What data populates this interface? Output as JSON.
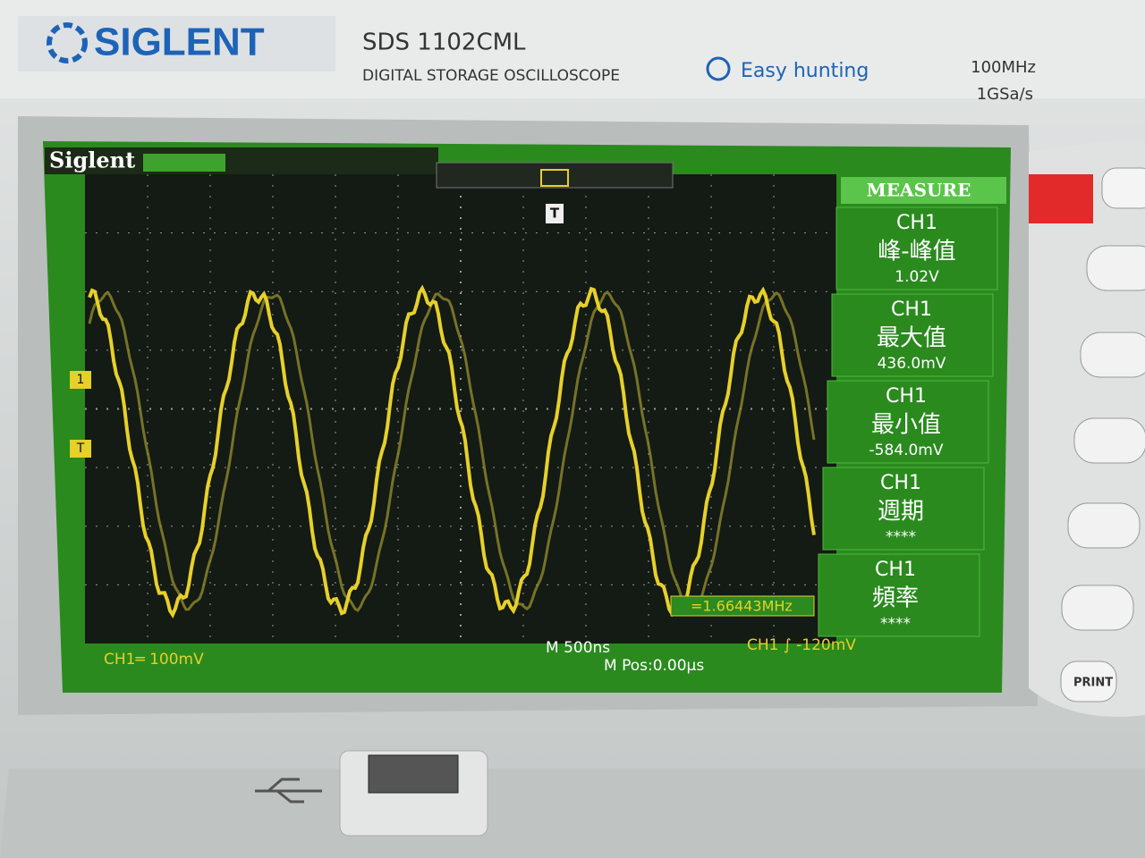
{
  "header": {
    "brand": "SIGLENT",
    "model": "SDS 1102CML",
    "subtitle": "DIGITAL STORAGE OSCILLOSCOPE",
    "feature": "Easy hunting",
    "bandwidth": "100MHz",
    "sample_rate": "1GSa/s"
  },
  "screen": {
    "logo": "Siglent",
    "trigger_marker": "T",
    "channel_marker": "1",
    "trigger_level_marker": "T",
    "measure_title": "MEASURE",
    "measurements": [
      {
        "channel": "CH1",
        "name": "峰-峰值",
        "value": "1.02V"
      },
      {
        "channel": "CH1",
        "name": "最大值",
        "value": "436.0mV"
      },
      {
        "channel": "CH1",
        "name": "最小值",
        "value": "-584.0mV"
      },
      {
        "channel": "CH1",
        "name": "週期",
        "value": "****"
      },
      {
        "channel": "CH1",
        "name": "頻率",
        "value": "****"
      }
    ],
    "frequency_readout": "=1.66443MHz",
    "ch1_scale": "CH1═ 100mV",
    "timebase": "M 500ns",
    "position": "M Pos:0.00μs",
    "trigger": "CH1 ∫ -120mV"
  },
  "buttons": {
    "print": "PRINT"
  }
}
